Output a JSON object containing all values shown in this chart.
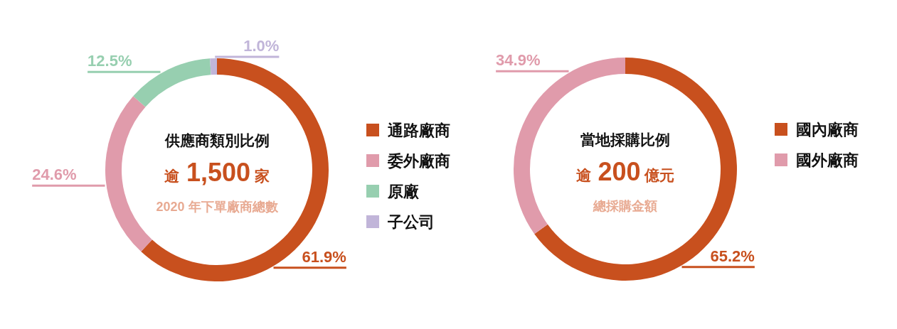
{
  "chart_data": [
    {
      "type": "donut",
      "title": "供應商類別比例",
      "annotations": [
        "逾 1,500 家",
        "2020 年下單廠商總數"
      ],
      "categories": [
        "通路廠商",
        "委外廠商",
        "原廠",
        "子公司"
      ],
      "values": [
        61.9,
        24.6,
        12.5,
        1.0
      ],
      "colors": [
        "#c8501e",
        "#e09bab",
        "#97cfb0",
        "#c1b5d9"
      ],
      "value_labels": [
        "61.9%",
        "24.6%",
        "12.5%",
        "1.0%"
      ],
      "legend": "right"
    },
    {
      "type": "donut",
      "title": "當地採購比例",
      "annotations": [
        "逾 200 億元",
        "總採購金額"
      ],
      "categories": [
        "國內廠商",
        "國外廠商"
      ],
      "values": [
        65.2,
        34.9
      ],
      "colors": [
        "#c8501e",
        "#e09bab"
      ],
      "value_labels": [
        "65.2%",
        "34.9%"
      ],
      "legend": "right"
    }
  ]
}
